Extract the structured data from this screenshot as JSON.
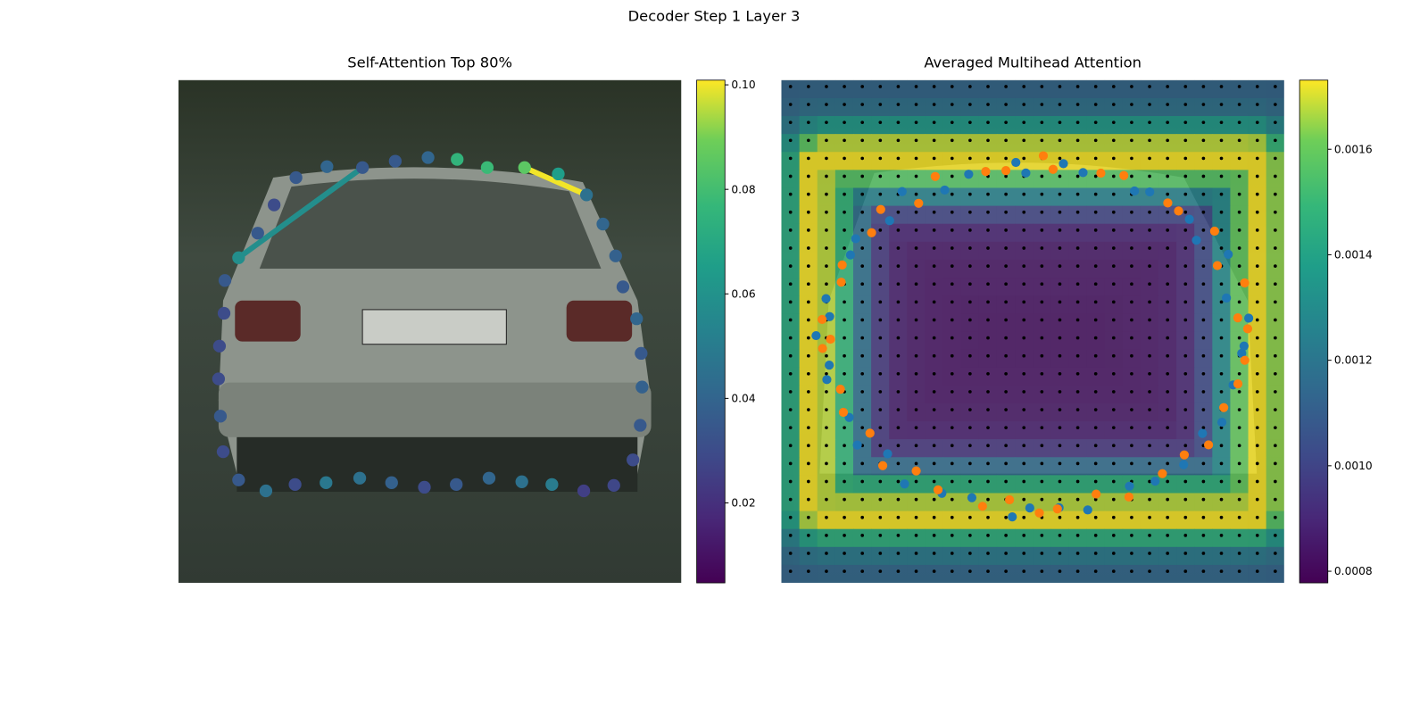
{
  "chart_data": [
    {
      "type": "image-attention",
      "suptitle": "Decoder Step 1 Layer 3",
      "title": "Self-Attention Top 80%",
      "colormap": "viridis",
      "clim": [
        0.0047,
        0.1009
      ],
      "cticks": [
        0.02,
        0.04,
        0.06,
        0.08,
        {
          "value": 0.1,
          "label": "0.10"
        }
      ],
      "point_values": [
        0.058,
        0.035,
        0.03,
        0.035,
        0.04,
        0.035,
        0.035,
        0.04,
        0.075,
        0.078,
        0.085,
        0.065,
        0.045,
        0.04,
        0.038,
        0.035,
        0.04,
        0.035,
        0.038,
        0.035,
        0.03,
        0.028,
        0.025,
        0.05,
        0.045,
        0.04,
        0.035,
        0.03,
        0.038,
        0.045,
        0.048,
        0.03,
        0.045,
        0.035,
        0.03,
        0.035,
        0.03,
        0.03,
        0.03,
        0.035
      ],
      "line_values": [
        0.058,
        0.1
      ]
    },
    {
      "type": "heatmap",
      "title": "Averaged Multihead Attention",
      "colormap": "viridis",
      "clim": [
        0.000778,
        0.001731
      ],
      "cticks": [
        0.0008,
        {
          "value": 0.001,
          "label": "0.0010"
        },
        0.0012,
        0.0014,
        0.0016
      ]
    }
  ]
}
